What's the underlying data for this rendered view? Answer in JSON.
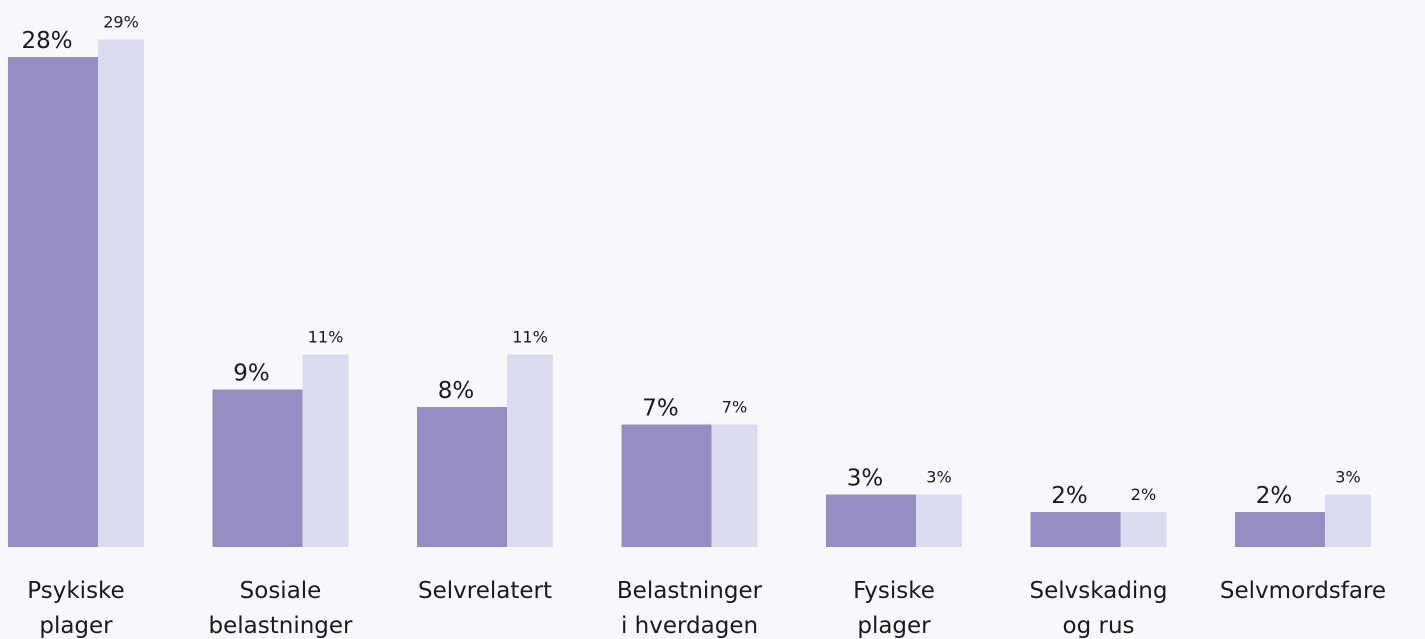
{
  "chart_data": {
    "type": "bar",
    "categories": [
      "Psykiske plager",
      "Sosiale belastninger",
      "Selvrelatert",
      "Belastninger i hverdagen",
      "Fysiske plager",
      "Selvskading og rus",
      "Selvmordsfare"
    ],
    "series": [
      {
        "color": "#968dc2",
        "values": [
          28,
          9,
          8,
          7,
          3,
          2,
          2
        ],
        "value_labels": [
          "28%",
          "9%",
          "8%",
          "7%",
          "3%",
          "2%",
          "2%"
        ]
      },
      {
        "color": "#dcdbef",
        "values": [
          29,
          11,
          11,
          7,
          3,
          2,
          3
        ],
        "value_labels": [
          "29%",
          "11%",
          "11%",
          "7%",
          "3%",
          "2%",
          "3%"
        ]
      }
    ]
  }
}
